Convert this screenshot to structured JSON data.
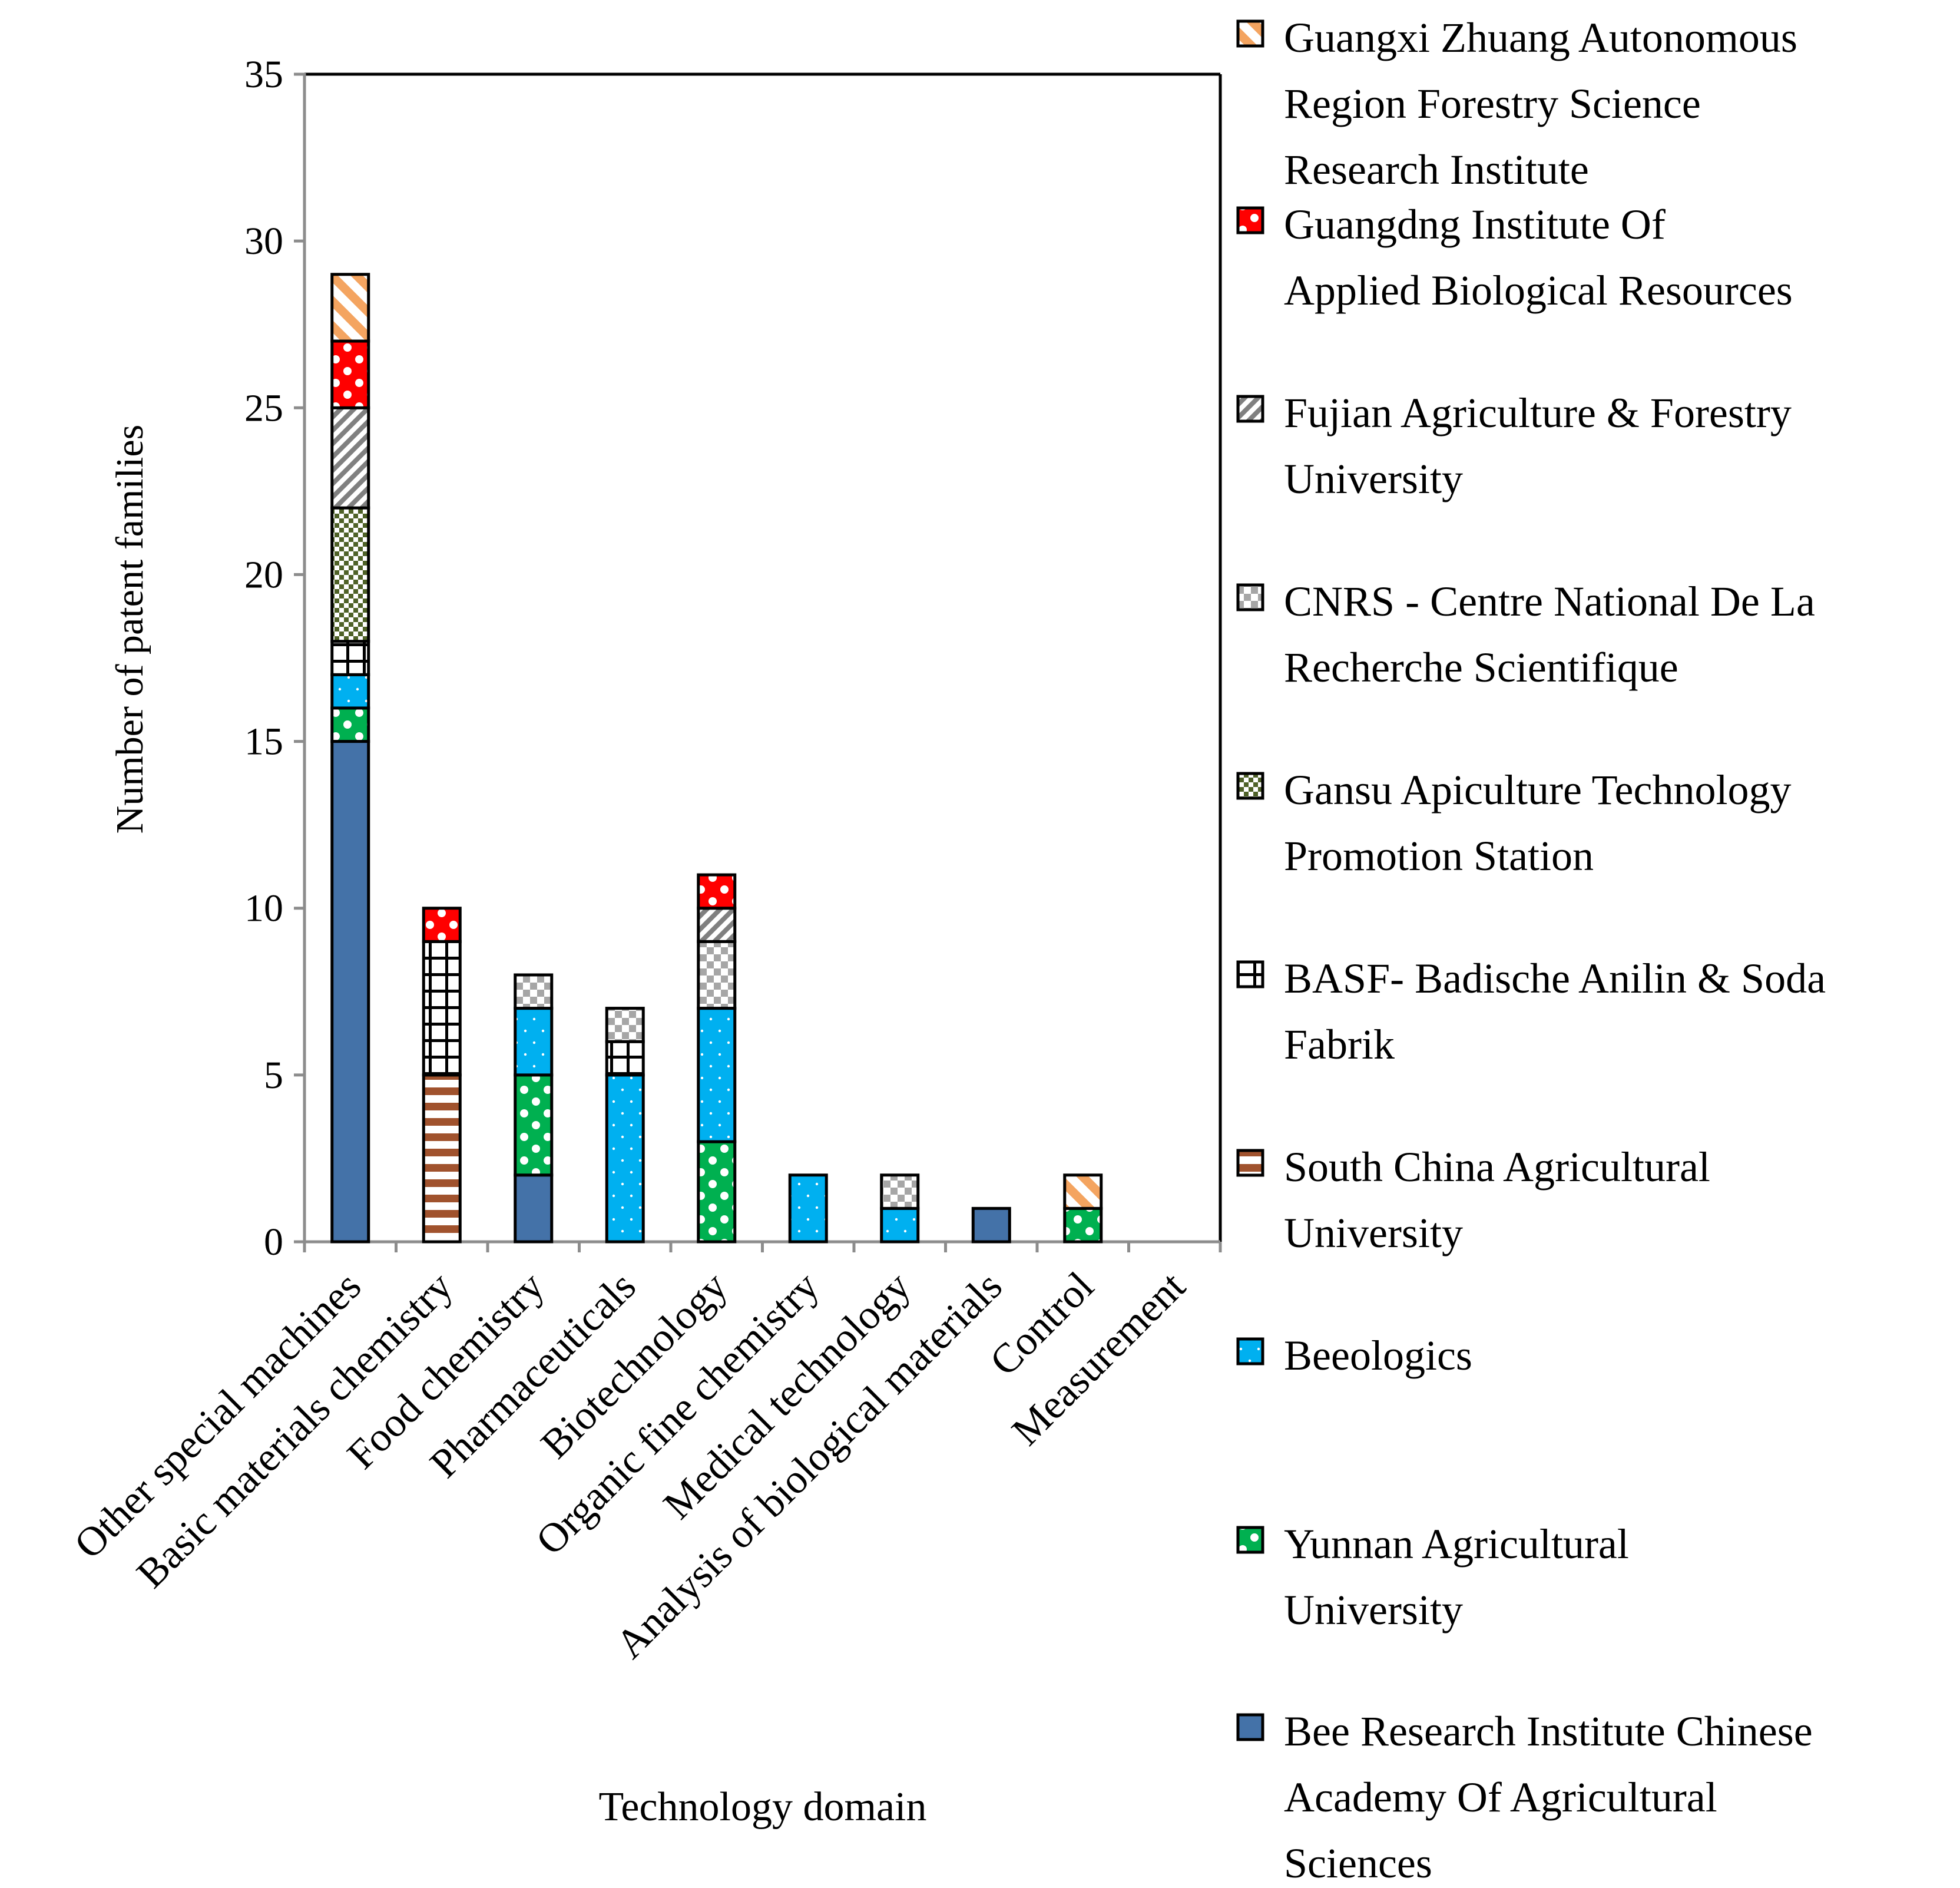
{
  "chart_data": {
    "type": "bar",
    "stacked": true,
    "title": "",
    "xlabel": "Technology domain",
    "ylabel": "Number of patent families",
    "ylim": [
      0,
      35
    ],
    "yticks": [
      0,
      5,
      10,
      15,
      20,
      25,
      30,
      35
    ],
    "grid": false,
    "legend_position": "right",
    "categories": [
      "Other special machines",
      "Basic materials chemistry",
      "Food chemistry",
      "Pharmaceuticals",
      "Biotechnology",
      "Organic fine chemistry",
      "Medical technology",
      "Analysis of biological materials",
      "Control",
      "Measurement"
    ],
    "series": [
      {
        "name": "Bee Research Institute Chinese Academy Of Agricultural Sciences",
        "color": "#4472a8",
        "pattern": "solid",
        "values": [
          15,
          0,
          2,
          0,
          0,
          0,
          0,
          1,
          0,
          0
        ]
      },
      {
        "name": "Yunnan Agricultural University",
        "color": "#00b050",
        "pattern": "circles",
        "values": [
          1,
          0,
          3,
          0,
          3,
          0,
          0,
          0,
          1,
          0
        ]
      },
      {
        "name": "Beeologics",
        "color": "#00b0f0",
        "pattern": "dots",
        "values": [
          1,
          0,
          2,
          5,
          4,
          2,
          1,
          0,
          0,
          0
        ]
      },
      {
        "name": "South China Agricultural University",
        "color": "#a0522d",
        "pattern": "horizontal-stripes",
        "values": [
          0,
          5,
          0,
          0,
          0,
          0,
          0,
          0,
          0,
          0
        ]
      },
      {
        "name": "BASF- Badische Anilin & Soda Fabrik",
        "color": "#000000",
        "pattern": "grid",
        "values": [
          1,
          4,
          0,
          1,
          0,
          0,
          0,
          0,
          0,
          0
        ]
      },
      {
        "name": "Gansu Apiculture Technology Promotion Station",
        "color": "#4f6228",
        "pattern": "checker",
        "values": [
          4,
          0,
          0,
          0,
          0,
          0,
          0,
          0,
          0,
          0
        ]
      },
      {
        "name": "CNRS - Centre National De La Recherche Scientifique",
        "color": "#a6a6a6",
        "pattern": "small-checker",
        "values": [
          0,
          0,
          1,
          1,
          2,
          0,
          1,
          0,
          0,
          0
        ]
      },
      {
        "name": "Fujian Agriculture & Forestry University",
        "color": "#808080",
        "pattern": "diagonal-stripes",
        "values": [
          3,
          0,
          0,
          0,
          1,
          0,
          0,
          0,
          0,
          0
        ]
      },
      {
        "name": "Guangdng Institute Of Applied Biological Resources",
        "color": "#ff0000",
        "pattern": "circles",
        "values": [
          2,
          1,
          0,
          0,
          1,
          0,
          0,
          0,
          0,
          0
        ]
      },
      {
        "name": "Guangxi Zhuang Autonomous Region Forestry Science Research Institute",
        "color": "#f4a460",
        "pattern": "wide-diagonal-stripes",
        "values": [
          2,
          0,
          0,
          0,
          0,
          0,
          0,
          0,
          1,
          0
        ]
      }
    ],
    "legend_lines": [
      [
        "Guangxi Zhuang Autonomous",
        "Region Forestry Science",
        "Research Institute"
      ],
      [
        "Guangdng Institute Of",
        "Applied Biological Resources"
      ],
      [
        "Fujian Agriculture & Forestry",
        "University"
      ],
      [
        "CNRS - Centre National De La",
        "Recherche Scientifique"
      ],
      [
        "Gansu Apiculture Technology",
        "Promotion Station"
      ],
      [
        "BASF- Badische Anilin & Soda",
        "Fabrik"
      ],
      [
        "South China Agricultural",
        "University"
      ],
      [
        "Beeologics"
      ],
      [
        "Yunnan Agricultural",
        "University"
      ],
      [
        "Bee Research Institute Chinese",
        "Academy Of Agricultural",
        "Sciences"
      ]
    ]
  }
}
